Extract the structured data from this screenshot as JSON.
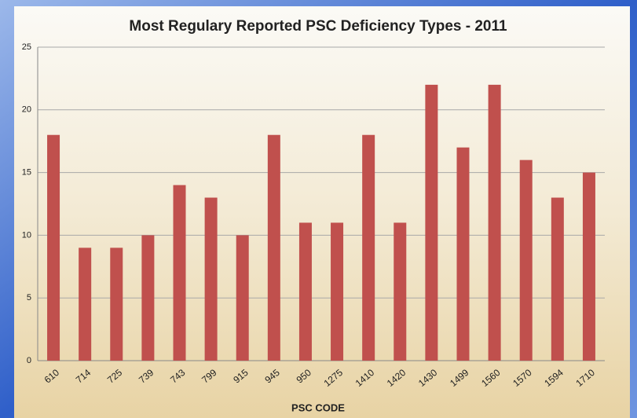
{
  "chart_data": {
    "type": "bar",
    "title": "Most Regulary Reported PSC Deficiency Types - 2011",
    "x_label": "PSC CODE",
    "categories": [
      "610",
      "714",
      "725",
      "739",
      "743",
      "799",
      "915",
      "945",
      "950",
      "1275",
      "1410",
      "1420",
      "1430",
      "1499",
      "1560",
      "1570",
      "1594",
      "1710"
    ],
    "values": [
      18,
      9,
      9,
      10,
      14,
      13,
      10,
      18,
      11,
      11,
      18,
      11,
      22,
      17,
      22,
      16,
      13,
      15
    ],
    "color": "#c0504d",
    "ylim": [
      0,
      25
    ],
    "yticks": [
      0,
      5,
      10,
      15,
      20,
      25
    ],
    "grid": true
  }
}
